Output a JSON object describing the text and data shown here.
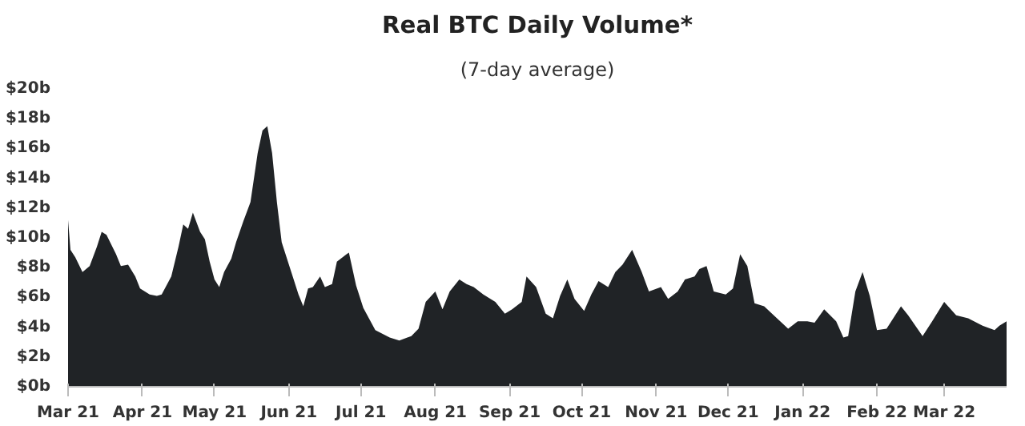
{
  "chart_data": {
    "type": "area",
    "title": "Real BTC Daily Volume*",
    "subtitle": "(7-day average)",
    "color": "#202326",
    "x": [
      "2021-03-01",
      "2021-03-02",
      "2021-03-04",
      "2021-03-07",
      "2021-03-10",
      "2021-03-13",
      "2021-03-15",
      "2021-03-17",
      "2021-03-21",
      "2021-03-23",
      "2021-03-26",
      "2021-03-29",
      "2021-03-31",
      "2021-04-04",
      "2021-04-07",
      "2021-04-09",
      "2021-04-13",
      "2021-04-16",
      "2021-04-18",
      "2021-04-20",
      "2021-04-22",
      "2021-04-25",
      "2021-04-27",
      "2021-04-29",
      "2021-05-01",
      "2021-05-03",
      "2021-05-05",
      "2021-05-08",
      "2021-05-10",
      "2021-05-13",
      "2021-05-16",
      "2021-05-19",
      "2021-05-21",
      "2021-05-23",
      "2021-05-25",
      "2021-05-27",
      "2021-05-29",
      "2021-06-02",
      "2021-06-05",
      "2021-06-07",
      "2021-06-09",
      "2021-06-11",
      "2021-06-14",
      "2021-06-16",
      "2021-06-19",
      "2021-06-21",
      "2021-06-25",
      "2021-06-26",
      "2021-06-29",
      "2021-07-02",
      "2021-07-07",
      "2021-07-13",
      "2021-07-17",
      "2021-07-22",
      "2021-07-25",
      "2021-07-28",
      "2021-08-01",
      "2021-08-04",
      "2021-08-07",
      "2021-08-11",
      "2021-08-14",
      "2021-08-17",
      "2021-08-21",
      "2021-08-26",
      "2021-08-30",
      "2021-09-02",
      "2021-09-06",
      "2021-09-08",
      "2021-09-12",
      "2021-09-16",
      "2021-09-19",
      "2021-09-22",
      "2021-09-25",
      "2021-09-28",
      "2021-10-02",
      "2021-10-05",
      "2021-10-08",
      "2021-10-12",
      "2021-10-15",
      "2021-10-18",
      "2021-10-22",
      "2021-10-26",
      "2021-10-29",
      "2021-11-03",
      "2021-11-06",
      "2021-11-10",
      "2021-11-13",
      "2021-11-17",
      "2021-11-19",
      "2021-11-22",
      "2021-11-25",
      "2021-11-30",
      "2021-12-03",
      "2021-12-06",
      "2021-12-09",
      "2021-12-12",
      "2021-12-16",
      "2021-12-20",
      "2021-12-26",
      "2021-12-30",
      "2022-01-03",
      "2022-01-06",
      "2022-01-10",
      "2022-01-15",
      "2022-01-18",
      "2022-01-20",
      "2022-01-23",
      "2022-01-26",
      "2022-01-29",
      "2022-02-01",
      "2022-02-05",
      "2022-02-11",
      "2022-02-14",
      "2022-02-20",
      "2022-02-24",
      "2022-03-01",
      "2022-03-06",
      "2022-03-11",
      "2022-03-17",
      "2022-03-22",
      "2022-03-24",
      "2022-03-27"
    ],
    "values": [
      11.2,
      9.2,
      8.7,
      7.7,
      8.1,
      9.4,
      10.4,
      10.2,
      8.9,
      8.1,
      8.2,
      7.4,
      6.6,
      6.2,
      6.1,
      6.2,
      7.4,
      9.4,
      10.9,
      10.6,
      11.7,
      10.4,
      9.9,
      8.4,
      7.2,
      6.7,
      7.7,
      8.6,
      9.7,
      11.1,
      12.4,
      15.7,
      17.2,
      17.5,
      15.7,
      12.4,
      9.7,
      7.7,
      6.2,
      5.4,
      6.6,
      6.7,
      7.4,
      6.7,
      6.9,
      8.4,
      8.9,
      9.0,
      6.8,
      5.3,
      3.8,
      3.3,
      3.1,
      3.4,
      3.9,
      5.7,
      6.4,
      5.2,
      6.4,
      7.2,
      6.9,
      6.7,
      6.2,
      5.7,
      4.9,
      5.2,
      5.7,
      7.4,
      6.7,
      4.9,
      4.6,
      6.1,
      7.2,
      5.9,
      5.1,
      6.2,
      7.1,
      6.7,
      7.7,
      8.2,
      9.2,
      7.7,
      6.4,
      6.7,
      5.9,
      6.4,
      7.2,
      7.4,
      7.9,
      8.1,
      6.4,
      6.2,
      6.6,
      8.9,
      8.1,
      5.6,
      5.4,
      4.8,
      3.9,
      4.4,
      4.4,
      4.3,
      5.2,
      4.4,
      3.3,
      3.4,
      6.4,
      7.7,
      6.1,
      3.8,
      3.9,
      5.4,
      4.8,
      3.4,
      4.4,
      5.7,
      4.8,
      4.6,
      4.1,
      3.8,
      4.1,
      4.4
    ],
    "xlim": [
      "2021-03-01",
      "2022-03-27"
    ],
    "xticks": [
      {
        "value": "2021-03-01",
        "label": "Mar 21"
      },
      {
        "value": "2021-04-01",
        "label": "Apr 21"
      },
      {
        "value": "2021-05-01",
        "label": "May 21"
      },
      {
        "value": "2021-06-01",
        "label": "Jun 21"
      },
      {
        "value": "2021-07-01",
        "label": "Jul 21"
      },
      {
        "value": "2021-08-01",
        "label": "Aug 21"
      },
      {
        "value": "2021-09-01",
        "label": "Sep 21"
      },
      {
        "value": "2021-10-01",
        "label": "Oct 21"
      },
      {
        "value": "2021-11-01",
        "label": "Nov 21"
      },
      {
        "value": "2021-12-01",
        "label": "Dec 21"
      },
      {
        "value": "2022-01-01",
        "label": "Jan 22"
      },
      {
        "value": "2022-02-01",
        "label": "Feb 22"
      },
      {
        "value": "2022-03-01",
        "label": "Mar 22"
      }
    ],
    "ylim": [
      0,
      20
    ],
    "yticks": [
      {
        "value": 0,
        "label": "$0b"
      },
      {
        "value": 2,
        "label": "$2b"
      },
      {
        "value": 4,
        "label": "$4b"
      },
      {
        "value": 6,
        "label": "$6b"
      },
      {
        "value": 8,
        "label": "$8b"
      },
      {
        "value": 10,
        "label": "$10b"
      },
      {
        "value": 12,
        "label": "$12b"
      },
      {
        "value": 14,
        "label": "$14b"
      },
      {
        "value": 16,
        "label": "$16b"
      },
      {
        "value": 18,
        "label": "$18b"
      },
      {
        "value": 20,
        "label": "$20b"
      }
    ],
    "grid": false
  }
}
